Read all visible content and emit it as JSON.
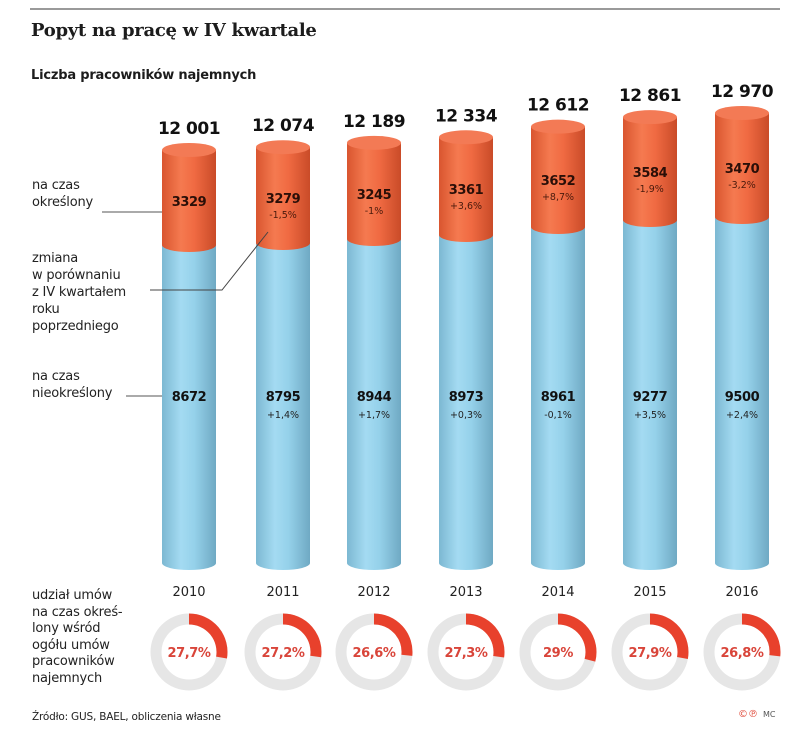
{
  "header": {
    "title": "Popyt na pracę w IV kwartale",
    "subtitle": "Liczba pracowników najemnych"
  },
  "legend": {
    "fixed_term": [
      "na czas",
      "określony"
    ],
    "change": [
      "zmiana",
      "w porównaniu",
      "z IV kwartałem",
      "roku",
      "poprzedniego"
    ],
    "permanent": [
      "na czas",
      "nieokreślony"
    ],
    "share": [
      "udział umów",
      "na czas okreś-",
      "lony wśród",
      "ogółu umów",
      "pracowników",
      "najemnych"
    ]
  },
  "colors": {
    "fixed_term": "#f0673f",
    "permanent": "#93d0ea",
    "donut_fill": "#e8412c",
    "donut_track": "#e6e6e6",
    "donut_text": "#d9453a"
  },
  "chart_data": {
    "type": "bar",
    "stacked": true,
    "title": "Popyt na pracę w IV kwartale",
    "subtitle": "Liczba pracowników najemnych",
    "categories": [
      "2010",
      "2011",
      "2012",
      "2013",
      "2014",
      "2015",
      "2016"
    ],
    "totals": [
      "12 001",
      "12 074",
      "12 189",
      "12 334",
      "12 612",
      "12 861",
      "12 970"
    ],
    "total_values": [
      12001,
      12074,
      12189,
      12334,
      12612,
      12861,
      12970
    ],
    "series": [
      {
        "name": "na czas nieokreślony",
        "values": [
          8672,
          8795,
          8944,
          8973,
          8961,
          9277,
          9500
        ],
        "labels": [
          "8672",
          "8795",
          "8944",
          "8973",
          "8961",
          "9277",
          "9500"
        ],
        "changes": [
          "",
          "+1,4%",
          "+1,7%",
          "+0,3%",
          "-0,1%",
          "+3,5%",
          "+2,4%"
        ]
      },
      {
        "name": "na czas określony",
        "values": [
          3329,
          3279,
          3245,
          3361,
          3652,
          3584,
          3470
        ],
        "labels": [
          "3329",
          "3279",
          "3245",
          "3361",
          "3652",
          "3584",
          "3470"
        ],
        "changes": [
          "",
          "-1,5%",
          "-1%",
          "+3,6%",
          "+8,7%",
          "-1,9%",
          "-3,2%"
        ]
      }
    ],
    "share": {
      "name": "udział umów na czas określony wśród ogółu umów pracowników najemnych",
      "type": "pie",
      "values": [
        27.7,
        27.2,
        26.6,
        27.3,
        29,
        27.9,
        26.8
      ],
      "labels": [
        "27,7%",
        "27,2%",
        "26,6%",
        "27,3%",
        "29%",
        "27,9%",
        "26,8%"
      ]
    },
    "xlabel": "",
    "ylabel": "",
    "grid": false
  },
  "footer": {
    "source": "Źródło: GUS, BAEL, obliczenia własne",
    "credit_icons": "©℗",
    "author": "MC"
  }
}
